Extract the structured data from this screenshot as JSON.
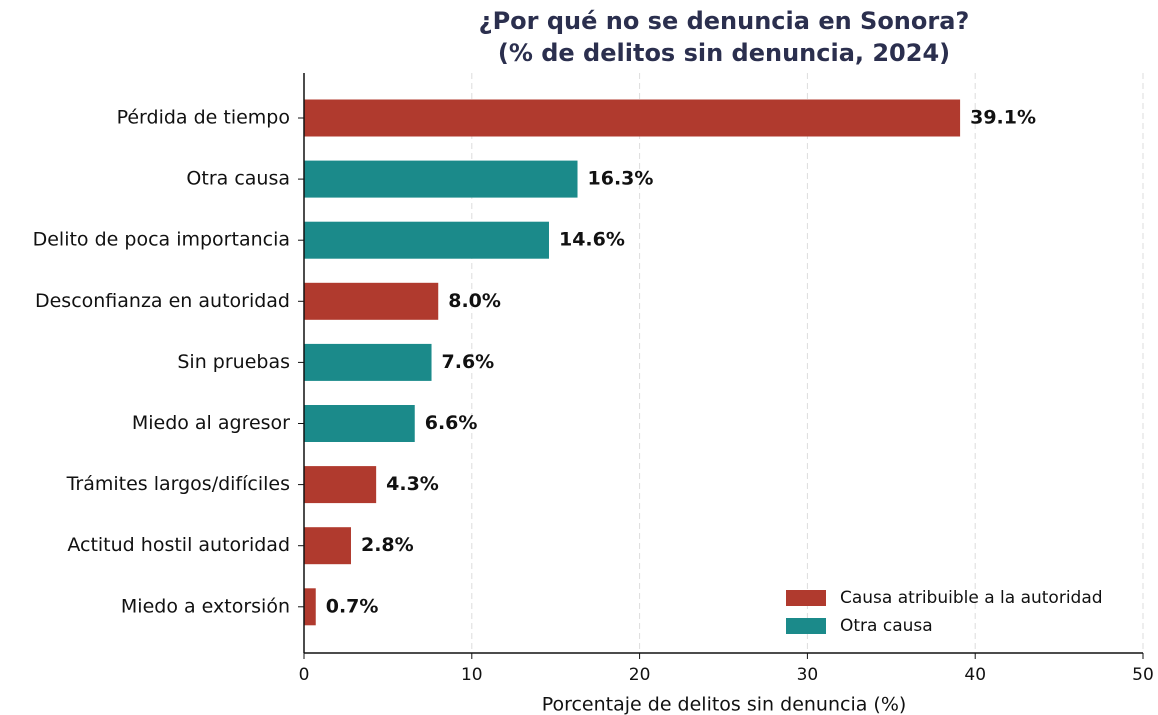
{
  "chart_data": {
    "type": "barh",
    "title": "¿Por qué no se denuncia en Sonora?",
    "subtitle": "(% de delitos sin denuncia, 2024)",
    "x_label": "Porcentaje de delitos sin denuncia (%)",
    "categories": [
      "Pérdida de tiempo",
      "Otra causa",
      "Delito de poca importancia",
      "Desconfianza en autoridad",
      "Sin pruebas",
      "Miedo al agresor",
      "Trámites largos/difíciles",
      "Actitud hostil autoridad",
      "Miedo a extorsión"
    ],
    "series": [
      {
        "name": "Causa atribuible a la autoridad",
        "color": "#b03a2e",
        "values": [
          39.1,
          null,
          null,
          8.0,
          null,
          null,
          4.3,
          2.8,
          0.7
        ],
        "value_labels": [
          "39.1%",
          null,
          null,
          "8.0%",
          null,
          null,
          "4.3%",
          "2.8%",
          "0.7%"
        ]
      },
      {
        "name": "Otra causa",
        "color": "#1b8a8a",
        "values": [
          null,
          16.3,
          14.6,
          null,
          7.6,
          6.6,
          null,
          null,
          null
        ],
        "value_labels": [
          null,
          "16.3%",
          "14.6%",
          null,
          "7.6%",
          "6.6%",
          null,
          null,
          null
        ]
      }
    ],
    "xlim": [
      0,
      50
    ],
    "xticks": [
      0,
      10,
      20,
      30,
      40,
      50
    ],
    "grid": true,
    "legend": "lower right"
  }
}
